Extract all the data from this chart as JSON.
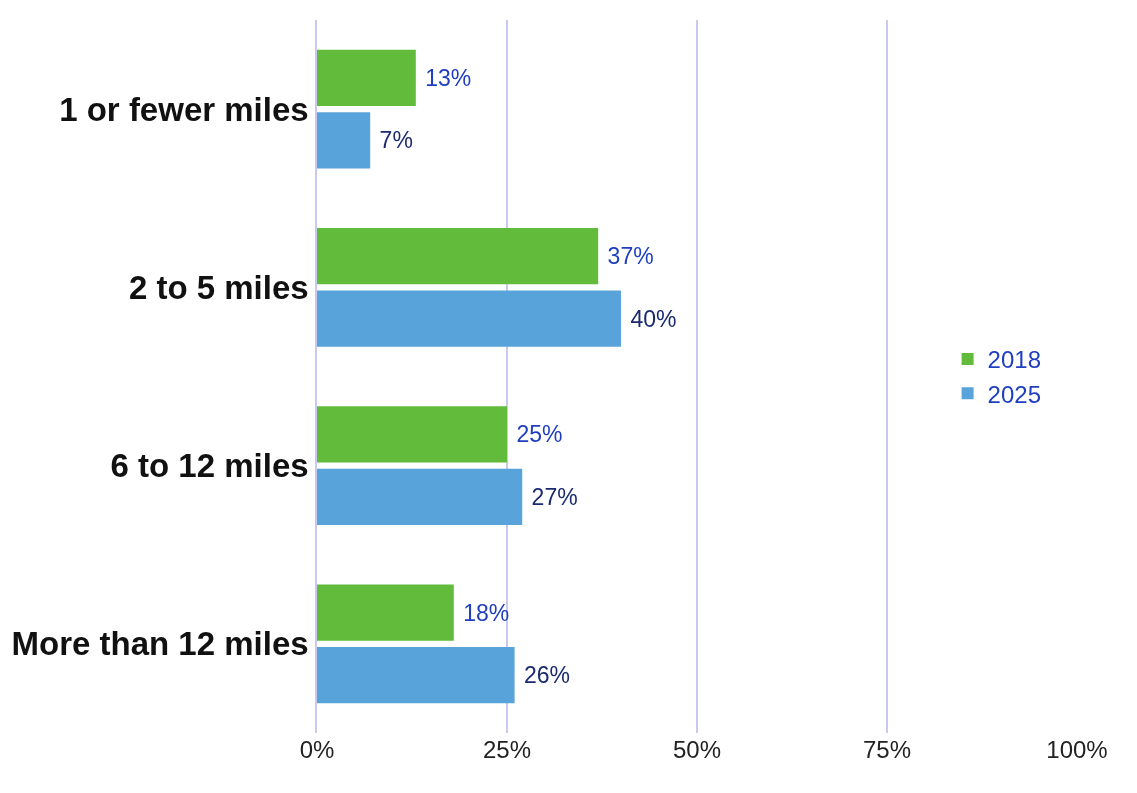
{
  "chart_data": {
    "type": "bar",
    "orientation": "horizontal",
    "categories": [
      "1 or fewer miles",
      "2 to 5 miles",
      "6 to 12 miles",
      "More than 12 miles"
    ],
    "series": [
      {
        "name": "2018",
        "color": "#62bb3b",
        "values": [
          13,
          37,
          25,
          18
        ],
        "value_labels": [
          "13%",
          "37%",
          "25%",
          "18%"
        ]
      },
      {
        "name": "2025",
        "color": "#58a3d9",
        "values": [
          7,
          40,
          27,
          26
        ],
        "value_labels": [
          "7%",
          "40%",
          "27%",
          "26%"
        ]
      }
    ],
    "xlim": [
      0,
      100
    ],
    "xticks": [
      {
        "value": 0,
        "label": "0%"
      },
      {
        "value": 25,
        "label": "25%"
      },
      {
        "value": 50,
        "label": "50%"
      },
      {
        "value": 75,
        "label": "75%"
      },
      {
        "value": 100,
        "label": "100%"
      }
    ],
    "grid": "x",
    "legend": "right"
  }
}
